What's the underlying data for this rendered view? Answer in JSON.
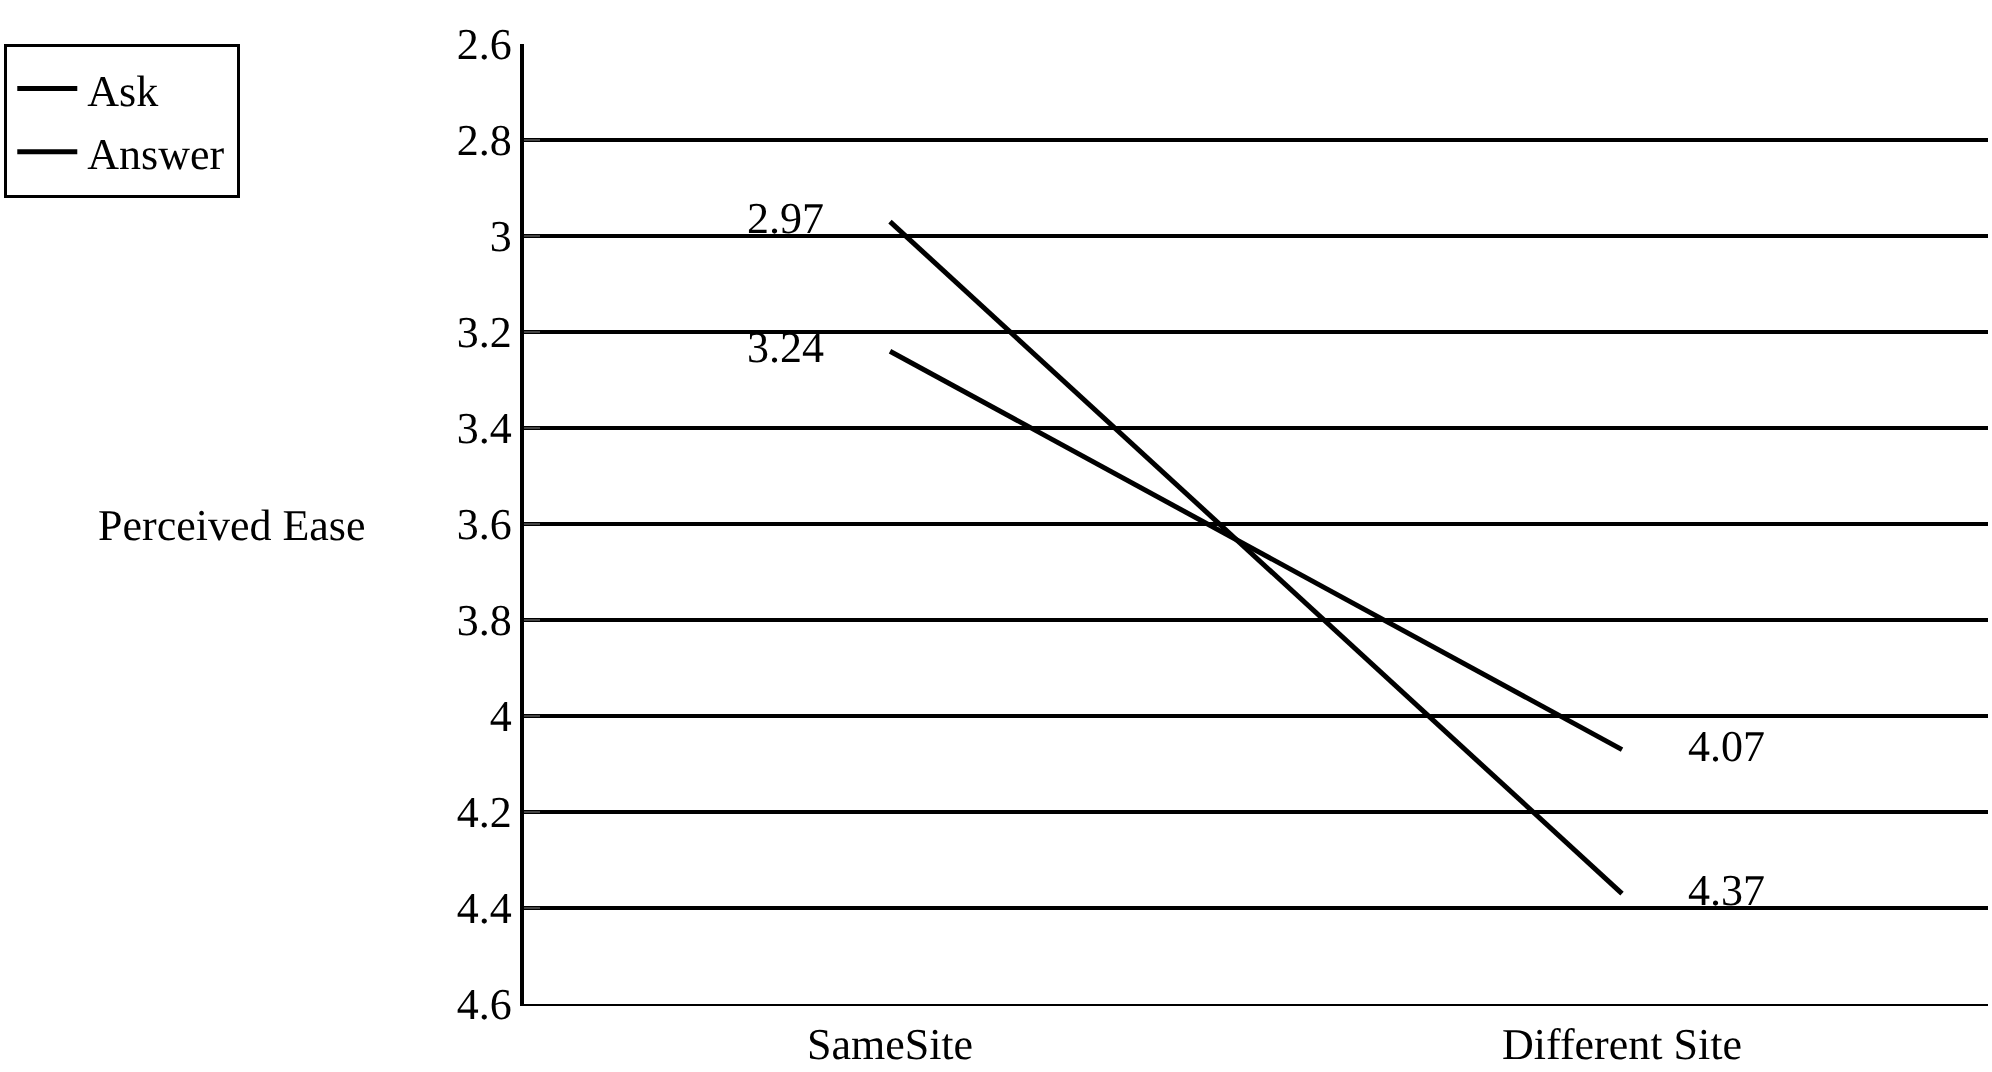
{
  "chart_data": {
    "type": "line",
    "ylabel": "Perceived Ease",
    "categories": [
      "SameSite",
      "Different Site"
    ],
    "series": [
      {
        "name": "Ask",
        "color": "#000000",
        "values": [
          2.97,
          4.37
        ],
        "value_labels": [
          "2.97",
          "4.37"
        ]
      },
      {
        "name": "Answer",
        "color": "#000000",
        "values": [
          3.24,
          4.07
        ],
        "value_labels": [
          "3.24",
          "4.07"
        ]
      }
    ],
    "ylim": [
      4.6,
      2.6
    ],
    "yticks": [
      2.6,
      2.8,
      3,
      3.2,
      3.4,
      3.6,
      3.8,
      4,
      4.2,
      4.4,
      4.6
    ],
    "grid": "y",
    "legend": "top left",
    "line_style": "solid"
  }
}
